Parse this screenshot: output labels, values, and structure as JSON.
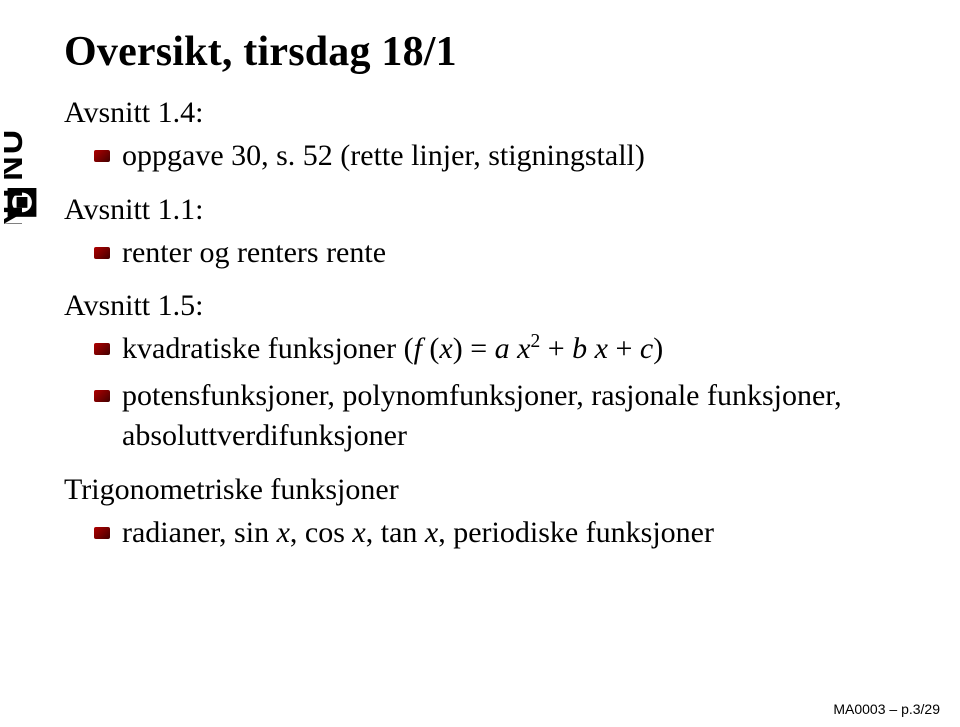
{
  "logo": {
    "text": "NTNU",
    "color": "#000000"
  },
  "title": "Oversikt, tirsdag 18/1",
  "sections": [
    {
      "heading": "Avsnitt 1.4:",
      "items": [
        "oppgave 30, s. 52 (rette linjer, stigningstall)"
      ]
    },
    {
      "heading": "Avsnitt 1.1:",
      "items": [
        "renter og renters rente"
      ]
    },
    {
      "heading": "Avsnitt 1.5:",
      "items": [
        "kvadratiske funksjoner (<span class=\"math\">f</span> (<span class=\"math\">x</span>) = <span class=\"math\">a x</span><span class=\"sup\">2</span> + <span class=\"math\">b x</span> + <span class=\"math\">c</span>)",
        "potensfunksjoner, polynomfunksjoner, rasjonale funksjoner, absoluttverdifunksjoner"
      ]
    },
    {
      "heading": "Trigonometriske funksjoner",
      "items": [
        "radianer, sin <span class=\"math\">x</span>, cos <span class=\"math\">x</span>, tan <span class=\"math\">x</span>, periodiske funksjoner"
      ]
    }
  ],
  "footer": "MA0003 – p.3/29",
  "styling": {
    "title_fontsize": 42,
    "body_fontsize": 30,
    "footer_fontsize": 14,
    "text_color": "#000000",
    "background_color": "#ffffff",
    "bullet_gradient": [
      "#b00000",
      "#700000",
      "#400000"
    ],
    "font_family_body": "Georgia/Times",
    "font_family_footer": "Arial/Helvetica"
  }
}
